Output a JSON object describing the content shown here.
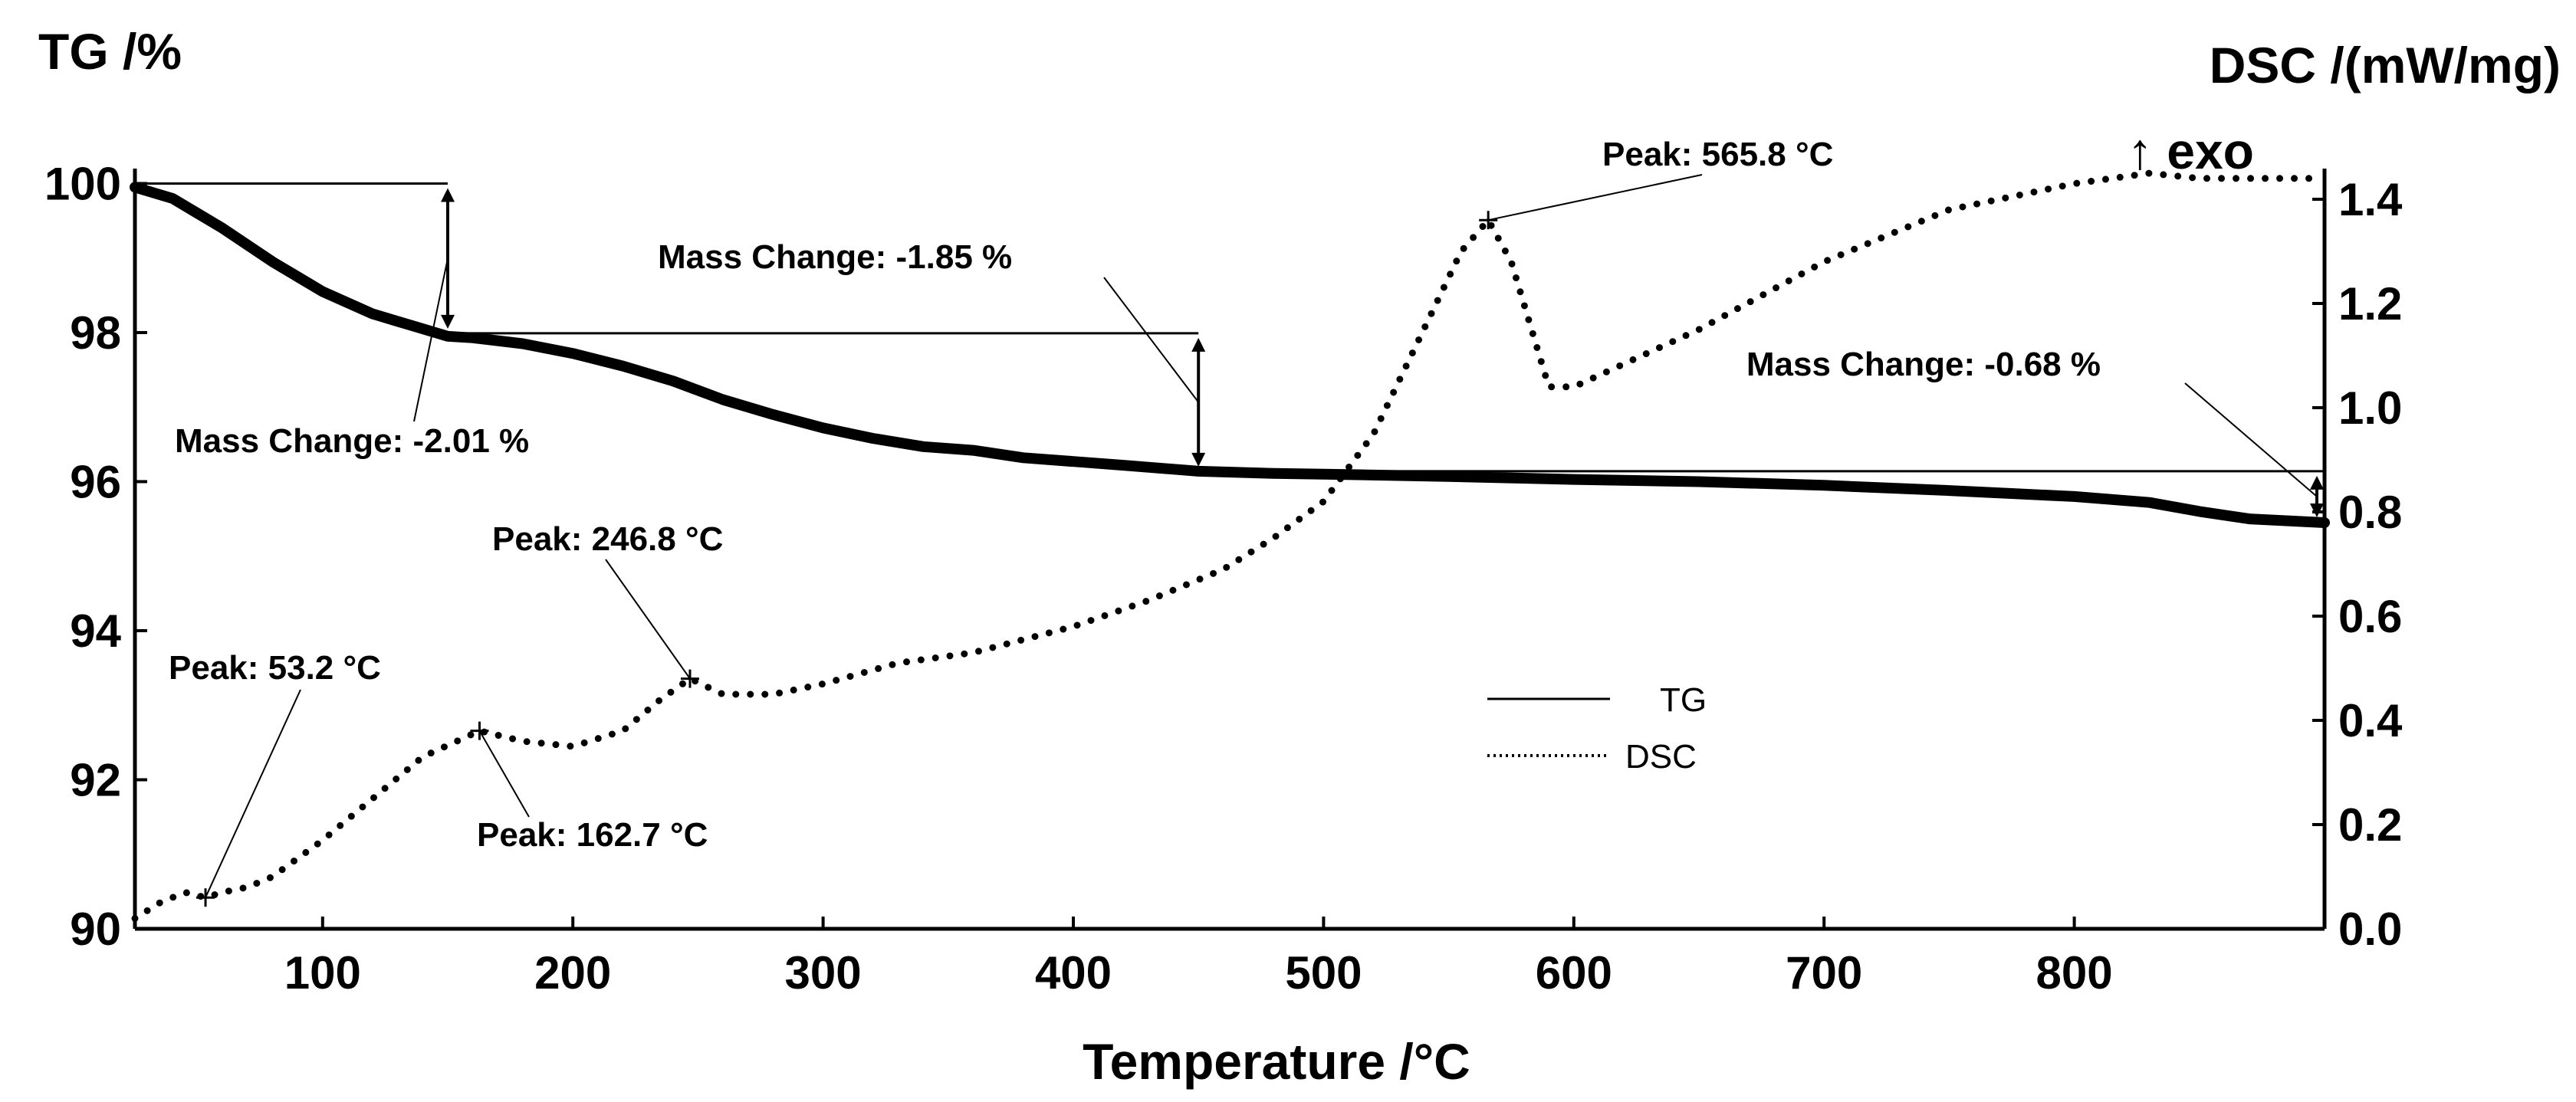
{
  "chart_data": {
    "type": "line",
    "xlabel": "Temperature /°C",
    "ylabel_left": "TG /%",
    "ylabel_right": "DSC /(mW/mg)",
    "exo_label": "↑ exo",
    "xlim": [
      25,
      900
    ],
    "ylim_left": [
      90,
      100.2
    ],
    "ylim_right": [
      0,
      1.5
    ],
    "x_ticks": [
      100,
      200,
      300,
      400,
      500,
      600,
      700,
      800
    ],
    "y_left_ticks": [
      90,
      92,
      94,
      96,
      98,
      100
    ],
    "y_right_ticks": [
      "0.0",
      "0.2",
      "0.4",
      "0.6",
      "0.8",
      "1.0",
      "1.2",
      "1.4"
    ],
    "legend": [
      {
        "label": "TG",
        "style": "solid"
      },
      {
        "label": "DSC",
        "style": "dotted"
      }
    ],
    "series": [
      {
        "name": "TG",
        "axis": "left",
        "style": "solid",
        "x": [
          25,
          40,
          60,
          80,
          100,
          120,
          140,
          150,
          160,
          180,
          200,
          220,
          240,
          260,
          280,
          300,
          320,
          340,
          360,
          380,
          400,
          420,
          450,
          480,
          500,
          550,
          600,
          650,
          700,
          750,
          800,
          830,
          850,
          870,
          900
        ],
        "y": [
          99.95,
          99.8,
          99.4,
          98.95,
          98.55,
          98.25,
          98.05,
          97.95,
          97.93,
          97.85,
          97.72,
          97.55,
          97.35,
          97.1,
          96.9,
          96.72,
          96.58,
          96.47,
          96.42,
          96.32,
          96.27,
          96.22,
          96.14,
          96.11,
          96.1,
          96.07,
          96.03,
          96.0,
          95.95,
          95.88,
          95.8,
          95.72,
          95.6,
          95.5,
          95.45
        ]
      },
      {
        "name": "DSC",
        "axis": "right",
        "style": "dotted",
        "x": [
          25,
          35,
          45,
          53.2,
          60,
          70,
          80,
          100,
          120,
          140,
          162.7,
          180,
          200,
          220,
          235,
          246.8,
          260,
          280,
          300,
          330,
          360,
          400,
          430,
          460,
          480,
          500,
          520,
          540,
          555,
          565.8,
          575,
          590,
          600,
          650,
          700,
          750,
          800,
          830,
          850,
          880,
          895
        ],
        "y": [
          0.02,
          0.05,
          0.07,
          0.06,
          0.07,
          0.08,
          0.1,
          0.17,
          0.25,
          0.33,
          0.38,
          0.36,
          0.35,
          0.38,
          0.44,
          0.48,
          0.45,
          0.45,
          0.47,
          0.51,
          0.53,
          0.58,
          0.63,
          0.69,
          0.75,
          0.82,
          0.95,
          1.15,
          1.3,
          1.36,
          1.28,
          1.04,
          1.04,
          1.15,
          1.28,
          1.38,
          1.43,
          1.45,
          1.44,
          1.44,
          1.44
        ]
      }
    ],
    "annotations": {
      "mass_changes": [
        {
          "label": "Mass Change: -2.01 %",
          "x": 150,
          "from": 100,
          "to": 97.99
        },
        {
          "label": "Mass Change: -1.85 %",
          "x": 450,
          "from": 97.99,
          "to": 96.14
        },
        {
          "label": "Mass Change: -0.68 %",
          "x": 900,
          "from": 96.14,
          "to": 95.46
        }
      ],
      "peaks": [
        {
          "label": "Peak: 53.2 °C",
          "x": 53.2,
          "y": 0.06
        },
        {
          "label": "Peak: 162.7 °C",
          "x": 162.7,
          "y": 0.38
        },
        {
          "label": "Peak: 246.8 °C",
          "x": 246.8,
          "y": 0.48
        },
        {
          "label": "Peak: 565.8 °C",
          "x": 565.8,
          "y": 1.36
        }
      ]
    }
  }
}
